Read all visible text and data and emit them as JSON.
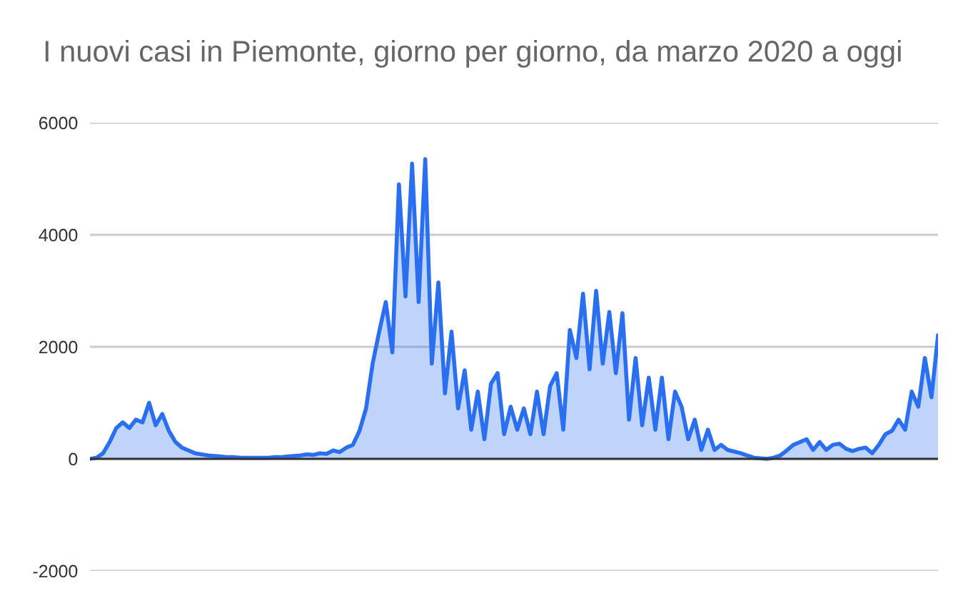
{
  "chart_data": {
    "type": "area",
    "title": "I nuovi casi in Piemonte, giorno per giorno, da marzo 2020 a oggi",
    "categories": [
      null,
      null,
      null,
      null,
      null,
      null,
      null,
      null,
      null,
      null,
      null,
      null,
      null,
      null,
      null,
      null,
      null,
      null,
      null,
      null,
      null,
      null,
      null,
      null,
      null,
      null,
      null,
      null,
      null,
      null,
      null,
      null,
      null,
      null,
      null,
      null,
      null,
      null,
      null,
      null,
      null,
      null,
      null,
      null,
      null,
      null,
      null,
      null,
      null,
      null,
      null,
      null,
      null,
      null,
      null,
      null,
      null,
      null,
      null,
      null,
      null,
      null,
      null,
      null,
      null,
      null,
      null,
      null,
      null,
      null,
      null,
      null,
      null,
      null,
      null,
      null,
      null,
      null,
      null,
      null,
      null,
      null,
      null,
      null,
      null,
      null,
      null,
      null,
      null,
      null,
      null,
      null,
      null,
      null,
      null,
      null,
      null,
      null,
      null,
      null,
      null,
      null,
      null,
      null,
      null,
      null,
      null,
      null,
      null,
      null,
      null,
      null,
      null,
      null,
      null,
      null,
      null,
      null,
      null,
      null,
      null,
      null,
      null,
      null,
      null,
      null,
      null,
      null,
      null,
      null
    ],
    "series": [
      {
        "color": "#2a6fef",
        "values": [
          0,
          20,
          100,
          300,
          550,
          650,
          550,
          700,
          650,
          1000,
          600,
          800,
          500,
          300,
          200,
          150,
          100,
          80,
          60,
          50,
          40,
          30,
          30,
          20,
          20,
          20,
          20,
          20,
          30,
          30,
          40,
          50,
          60,
          80,
          70,
          100,
          90,
          150,
          120,
          200,
          250,
          500,
          900,
          1700,
          2270,
          2800,
          1900,
          4900,
          2900,
          5270,
          2800,
          5350,
          1700,
          3150,
          1170,
          2270,
          900,
          1580,
          520,
          1200,
          350,
          1340,
          1530,
          440,
          930,
          520,
          900,
          440,
          1200,
          440,
          1300,
          1530,
          520,
          2300,
          1800,
          2950,
          1600,
          3000,
          1700,
          2620,
          1530,
          2600,
          700,
          1800,
          600,
          1450,
          520,
          1450,
          350,
          1200,
          930,
          350,
          700,
          160,
          520,
          160,
          250,
          160,
          130,
          100,
          60,
          20,
          10,
          0,
          20,
          60,
          150,
          250,
          300,
          350,
          160,
          300,
          160,
          250,
          270,
          180,
          140,
          180,
          200,
          100,
          250,
          440,
          500,
          700,
          520,
          1200,
          930,
          1800,
          1100,
          2200
        ]
      }
    ],
    "ylim": [
      -2000,
      6000
    ],
    "yticks": [
      -2000,
      0,
      2000,
      4000,
      6000
    ],
    "grid": "y"
  }
}
